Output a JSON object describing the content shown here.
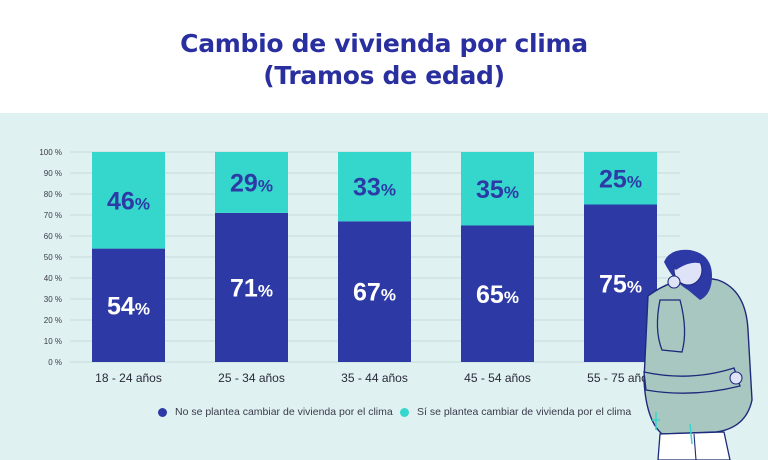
{
  "title_line1": "Cambio de vivienda por clima",
  "title_line2": "(Tramos de edad)",
  "colors": {
    "no": "#2d3aa6",
    "si": "#35d6cc",
    "title": "#2a2fa0",
    "panel": "#dff1f1"
  },
  "chart_data": {
    "type": "bar",
    "stacked": true,
    "categories": [
      "18 - 24 años",
      "25 - 34 años",
      "35 - 44 años",
      "45 - 54 años",
      "55 - 75 años"
    ],
    "series": [
      {
        "name": "No se plantea cambiar de vivienda por el clima",
        "values": [
          54,
          71,
          67,
          65,
          75
        ]
      },
      {
        "name": "Sí se plantea cambiar de vivienda por el clima",
        "values": [
          46,
          29,
          33,
          35,
          25
        ]
      }
    ],
    "yticks": [
      "0 %",
      "10 %",
      "20 %",
      "30 %",
      "40 %",
      "50 %",
      "60 %",
      "70 %",
      "80 %",
      "90 %",
      "100 %"
    ],
    "ylim": [
      0,
      100
    ],
    "grid": true,
    "legend_position": "bottom",
    "value_suffix": "%"
  },
  "legend": {
    "no_label": "No se plantea cambiar de vivienda por el clima",
    "si_label": "Sí se plantea cambiar de vivienda por el clima"
  }
}
